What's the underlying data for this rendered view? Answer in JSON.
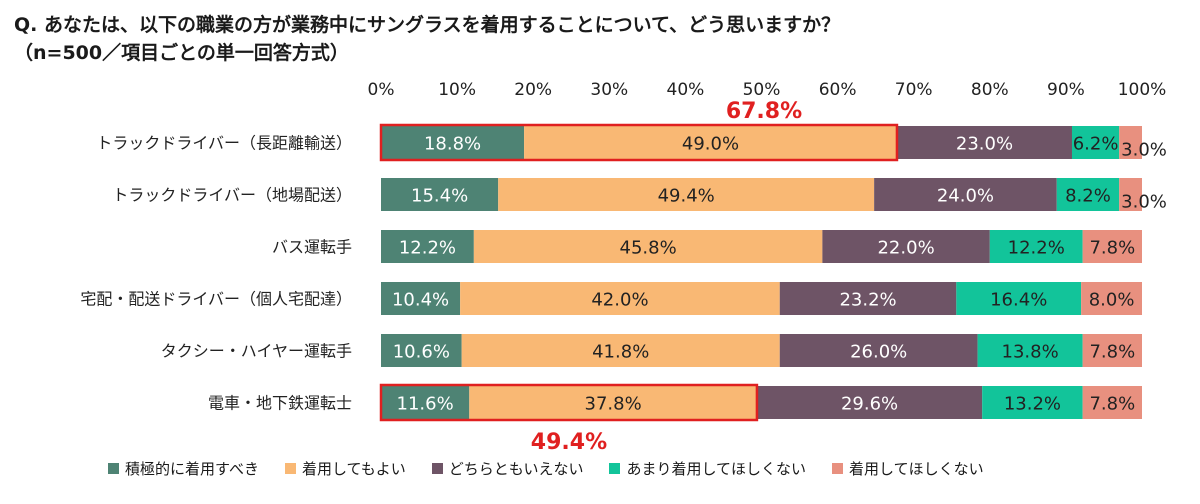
{
  "title_line1": "Q. あなたは、以下の職業の方が業務中にサングラスを着用することについて、どう思いますか？",
  "title_line2": "（n=500／項目ごとの単一回答方式）",
  "chart_data": {
    "type": "bar",
    "orientation": "horizontal-stacked-100",
    "xlim": [
      0,
      100
    ],
    "xticks": [
      "0%",
      "10%",
      "20%",
      "30%",
      "40%",
      "50%",
      "60%",
      "70%",
      "80%",
      "90%",
      "100%"
    ],
    "categories": [
      "トラックドライバー（長距離輸送）",
      "トラックドライバー（地場配送）",
      "バス運転手",
      "宅配・配送ドライバー（個人宅配達）",
      "タクシー・ハイヤー運転手",
      "電車・地下鉄運転士"
    ],
    "series": [
      {
        "name": "積極的に着用すべき",
        "color": "#4e8374",
        "label_color": "#ffffff",
        "values": [
          18.8,
          15.4,
          12.2,
          10.4,
          10.6,
          11.6
        ]
      },
      {
        "name": "着用してもよい",
        "color": "#f9b874",
        "label_color": "#222222",
        "values": [
          49.0,
          49.4,
          45.8,
          42.0,
          41.8,
          37.8
        ]
      },
      {
        "name": "どちらともいえない",
        "color": "#6e5466",
        "label_color": "#ffffff",
        "values": [
          23.0,
          24.0,
          22.0,
          23.2,
          26.0,
          29.6
        ]
      },
      {
        "name": "あまり着用してほしくない",
        "color": "#12c49a",
        "label_color": "#222222",
        "values": [
          6.2,
          8.2,
          12.2,
          16.4,
          13.8,
          13.2
        ]
      },
      {
        "name": "着用してほしくない",
        "color": "#e8907f",
        "label_color": "#222222",
        "values": [
          3.0,
          3.0,
          7.8,
          8.0,
          7.8,
          7.8
        ]
      }
    ],
    "segment_labels": [
      [
        "18.8%",
        "49.0%",
        "23.0%",
        "6.2%",
        "3.0%"
      ],
      [
        "15.4%",
        "49.4%",
        "24.0%",
        "8.2%",
        "3.0%"
      ],
      [
        "12.2%",
        "45.8%",
        "22.0%",
        "12.2%",
        "7.8%"
      ],
      [
        "10.4%",
        "42.0%",
        "23.2%",
        "16.4%",
        "8.0%"
      ],
      [
        "10.6%",
        "41.8%",
        "26.0%",
        "13.8%",
        "7.8%"
      ],
      [
        "11.6%",
        "37.8%",
        "29.6%",
        "13.2%",
        "7.8%"
      ]
    ],
    "highlights": [
      {
        "category_index": 0,
        "total": 67.8,
        "label": "67.8%",
        "position": "above"
      },
      {
        "category_index": 5,
        "total": 49.4,
        "label": "49.4%",
        "position": "below"
      }
    ],
    "legend_position": "bottom",
    "grid": false
  }
}
